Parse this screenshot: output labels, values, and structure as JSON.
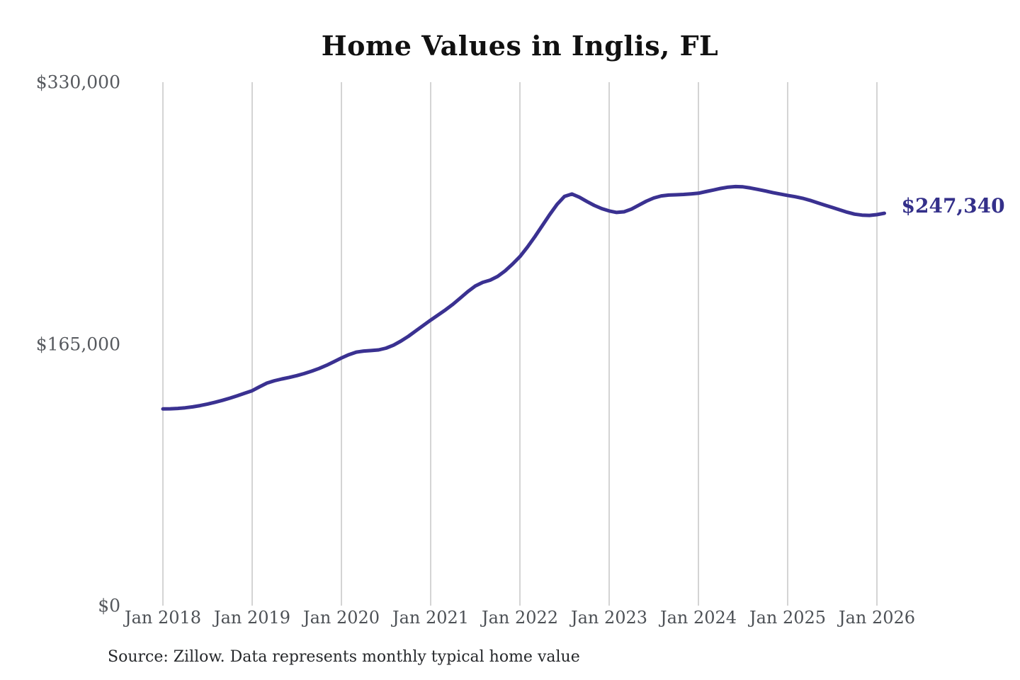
{
  "title": "Home Values in Inglis, FL",
  "source_note": "Source: Zillow. Data represents monthly typical home value",
  "end_label": "$247,340",
  "colors": {
    "line": "#3a3191",
    "end_label": "#34308a",
    "grid": "#c9c9c9",
    "title": "#111111",
    "y_axis_label": "#56595e",
    "x_axis_label": "#4d5156",
    "source": "#26282b",
    "background": "#ffffff"
  },
  "chart_data": {
    "type": "line",
    "title": "Home Values in Inglis, FL",
    "xlabel": "",
    "ylabel": "",
    "ylim": [
      0,
      330000
    ],
    "grid": "vertical-only",
    "legend_position": "none",
    "x_unit": "month",
    "x_start": "Jan 2018",
    "x_end": "Feb 2026",
    "x_ticks": [
      "Jan 2018",
      "Jan 2019",
      "Jan 2020",
      "Jan 2021",
      "Jan 2022",
      "Jan 2023",
      "Jan 2024",
      "Jan 2025",
      "Jan 2026"
    ],
    "y_ticks": [
      {
        "label": "$0",
        "value": 0
      },
      {
        "label": "$165,000",
        "value": 165000
      },
      {
        "label": "$330,000",
        "value": 330000
      }
    ],
    "series": [
      {
        "name": "Monthly typical home value",
        "final_value": 247340,
        "final_value_label": "$247,340",
        "values": [
          124000,
          124100,
          124300,
          124700,
          125300,
          126100,
          127100,
          128200,
          129400,
          130800,
          132300,
          133900,
          135500,
          138000,
          140300,
          141800,
          142900,
          143900,
          145000,
          146300,
          147800,
          149500,
          151500,
          153800,
          156100,
          158200,
          159800,
          160500,
          160800,
          161200,
          162300,
          164200,
          166800,
          169800,
          173200,
          176600,
          180000,
          183200,
          186500,
          190000,
          194000,
          198000,
          201500,
          203800,
          205200,
          207500,
          211000,
          215300,
          220000,
          226000,
          232500,
          239500,
          246500,
          253000,
          258000,
          259500,
          257500,
          254800,
          252300,
          250300,
          248800,
          247900,
          248300,
          250000,
          252500,
          255000,
          257000,
          258300,
          258800,
          259000,
          259200,
          259600,
          260000,
          261000,
          262000,
          263000,
          263800,
          264200,
          264000,
          263300,
          262400,
          261400,
          260400,
          259500,
          258600,
          257800,
          256800,
          255500,
          254000,
          252500,
          251000,
          249500,
          248000,
          246800,
          246200,
          246000,
          246500,
          247340
        ]
      }
    ]
  }
}
